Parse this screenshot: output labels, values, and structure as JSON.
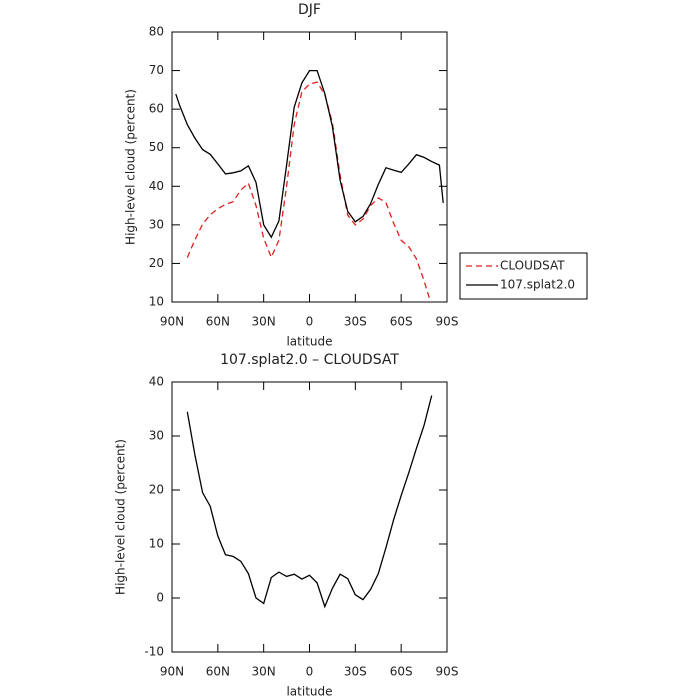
{
  "chart_data": [
    {
      "type": "line",
      "title": "DJF",
      "xlabel": "latitude",
      "ylabel": "High-level cloud (percent)",
      "x": [
        87.5,
        85,
        80,
        75,
        70,
        65,
        60,
        55,
        50,
        45,
        40,
        35,
        30,
        25,
        20,
        15,
        10,
        5,
        0,
        -5,
        -10,
        -15,
        -20,
        -25,
        -30,
        -35,
        -40,
        -45,
        -50,
        -55,
        -60,
        -65,
        -70,
        -75,
        -80,
        -85,
        -87.5
      ],
      "series": [
        {
          "name": "CLOUDSAT",
          "color": "#e0201b",
          "dashed": true,
          "values": [
            null,
            null,
            21.5,
            26.1,
            30.2,
            32.6,
            34.2,
            35.3,
            36,
            39,
            40.8,
            35,
            26.5,
            21.6,
            26,
            40,
            56,
            64.5,
            66.5,
            67,
            63.8,
            56.5,
            42.9,
            32.5,
            30,
            31.5,
            35,
            37,
            35.8,
            30.5,
            26,
            24.3,
            21.2,
            15.5,
            9,
            null,
            null
          ]
        },
        {
          "name": "107.splat2.0",
          "color": "#000000",
          "dashed": false,
          "values": [
            63.9,
            61,
            56,
            52.5,
            49.5,
            48.3,
            45.8,
            43.2,
            43.5,
            44,
            45.3,
            41,
            30,
            26.8,
            31,
            45.5,
            60.5,
            66.8,
            70,
            70,
            64,
            55.5,
            41.6,
            33.5,
            30.8,
            32.2,
            35.5,
            40.5,
            44.8,
            44.2,
            43.6,
            45.8,
            48.2,
            47.5,
            46.4,
            45.5,
            35.7
          ]
        }
      ],
      "xlim": [
        90,
        -90
      ],
      "xticks": [
        {
          "value": 90,
          "label": "90N"
        },
        {
          "value": 60,
          "label": "60N"
        },
        {
          "value": 30,
          "label": "30N"
        },
        0,
        {
          "value": -30,
          "label": "30S"
        },
        {
          "value": -60,
          "label": "60S"
        },
        {
          "value": -90,
          "label": "90S"
        }
      ],
      "ylim": [
        10,
        80
      ],
      "yticks": [
        10,
        20,
        30,
        40,
        50,
        60,
        70,
        80
      ],
      "legend": "right"
    },
    {
      "type": "line",
      "title": "107.splat2.0 – CLOUDSAT",
      "xlabel": "latitude",
      "ylabel": "High-level cloud (percent)",
      "x": [
        80,
        75,
        70,
        65,
        60,
        55,
        50,
        45,
        40,
        35,
        30,
        25,
        20,
        15,
        10,
        5,
        0,
        -5,
        -10,
        -15,
        -20,
        -25,
        -30,
        -35,
        -40,
        -45,
        -50,
        -55,
        -60,
        -65,
        -70,
        -75,
        -80
      ],
      "values": [
        34.5,
        26.5,
        19.5,
        17,
        11.5,
        8,
        7.7,
        6.8,
        4.5,
        0,
        -1,
        3.8,
        4.8,
        4,
        4.4,
        3.5,
        4.2,
        2.8,
        -1.6,
        1.8,
        4.4,
        3.6,
        0.6,
        -0.3,
        1.6,
        4.5,
        9.3,
        14.4,
        19,
        23.2,
        27.7,
        32,
        37.5
      ],
      "color": "#000000",
      "xlim": [
        90,
        -90
      ],
      "xticks": [
        {
          "value": 90,
          "label": "90N"
        },
        {
          "value": 60,
          "label": "60N"
        },
        {
          "value": 30,
          "label": "30N"
        },
        0,
        {
          "value": -30,
          "label": "30S"
        },
        {
          "value": -60,
          "label": "60S"
        },
        {
          "value": -90,
          "label": "90S"
        }
      ],
      "ylim": [
        -10,
        40
      ],
      "yticks": [
        -10,
        0,
        10,
        20,
        30,
        40
      ]
    }
  ]
}
